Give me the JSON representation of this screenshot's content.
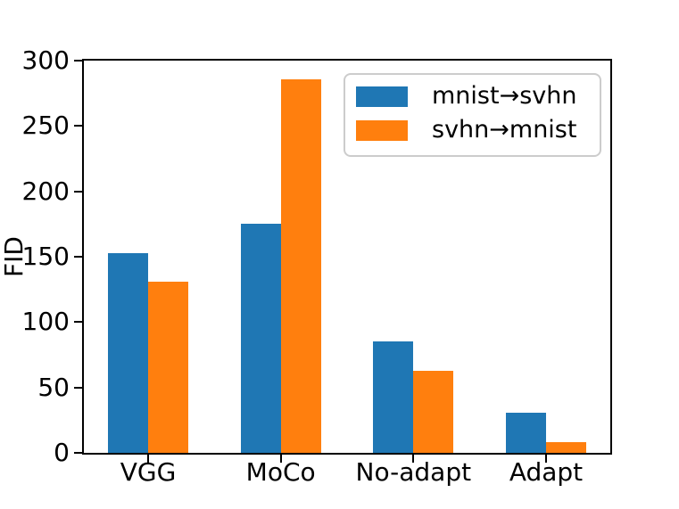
{
  "chart_data": {
    "type": "bar",
    "title": "",
    "xlabel": "",
    "ylabel": "FID",
    "categories": [
      "VGG",
      "MoCo",
      "No-adapt",
      "Adapt"
    ],
    "series": [
      {
        "name": "mnist→svhn",
        "color": "#1f77b4",
        "values": [
          153,
          175,
          85,
          31
        ]
      },
      {
        "name": "svhn→mnist",
        "color": "#ff7f0e",
        "values": [
          131,
          286,
          63,
          8
        ]
      }
    ],
    "ylim": [
      0,
      300
    ],
    "yticks": [
      0,
      50,
      100,
      150,
      200,
      250,
      300
    ],
    "legend_position": "upper right",
    "grid": false,
    "colors": {
      "axis": "#000000",
      "text": "#000000",
      "legend_border": "#cccccc",
      "background": "#ffffff"
    }
  }
}
